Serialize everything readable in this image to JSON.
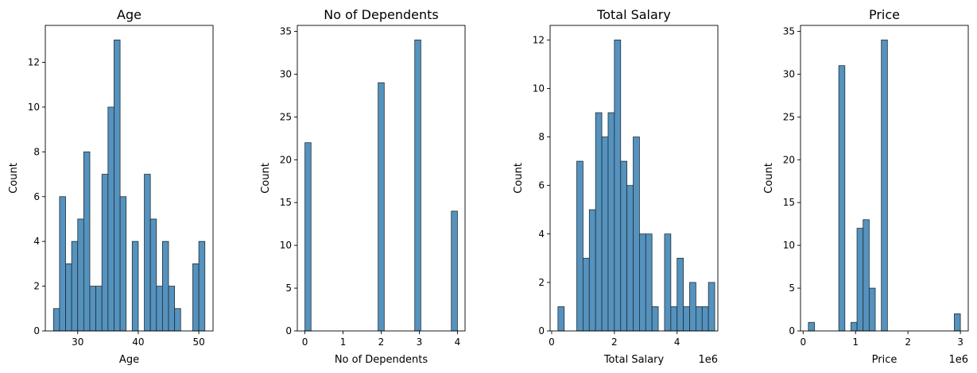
{
  "bar_color": "#5592bd",
  "edge_color": "#1f2f3b",
  "chart_data": [
    {
      "type": "bar",
      "title": "Age",
      "xlabel": "Age",
      "ylabel": "Count",
      "xlim": [
        24.65,
        52.35
      ],
      "ylim": [
        0,
        13.65
      ],
      "x_ticks": [
        30,
        40,
        50
      ],
      "y_ticks": [
        0,
        2,
        4,
        6,
        8,
        10,
        12
      ],
      "bin_edges": [
        26.0,
        27.0,
        28.0,
        29.0,
        30.0,
        31.0,
        32.0,
        33.0,
        34.0,
        35.0,
        36.0,
        37.0,
        38.0,
        39.0,
        40.0,
        41.0,
        42.0,
        43.0,
        44.0,
        45.0,
        46.0,
        47.0,
        48.0,
        49.0,
        50.0,
        51.0
      ],
      "counts": [
        1,
        6,
        3,
        4,
        5,
        8,
        2,
        2,
        7,
        10,
        13,
        6,
        0,
        4,
        0,
        7,
        5,
        2,
        4,
        2,
        1,
        0,
        0,
        3,
        4
      ]
    },
    {
      "type": "bar",
      "title": "No of Dependents",
      "xlabel": "No of Dependents",
      "ylabel": "Count",
      "xlim": [
        -0.2,
        4.2
      ],
      "ylim": [
        0,
        35.7
      ],
      "x_ticks": [
        0,
        1,
        2,
        3,
        4
      ],
      "y_ticks": [
        0,
        5,
        10,
        15,
        20,
        25,
        30,
        35
      ],
      "bin_edges": [
        0.0,
        0.16,
        0.32,
        0.48,
        0.64,
        0.8,
        0.96,
        1.12,
        1.28,
        1.44,
        1.6,
        1.76,
        1.92,
        2.08,
        2.24,
        2.4,
        2.56,
        2.72,
        2.88,
        3.04,
        3.2,
        3.36,
        3.52,
        3.68,
        3.84,
        4.0
      ],
      "counts": [
        22,
        0,
        0,
        0,
        0,
        0,
        0,
        0,
        0,
        0,
        0,
        0,
        29,
        0,
        0,
        0,
        0,
        0,
        34,
        0,
        0,
        0,
        0,
        0,
        14
      ]
    },
    {
      "type": "bar",
      "title": "Total Salary",
      "xlabel": "Total Salary",
      "ylabel": "Count",
      "x_exponent_label": "1e6",
      "xlim": [
        -0.05,
        5.3
      ],
      "ylim": [
        0,
        12.6
      ],
      "x_ticks": [
        0,
        2,
        4
      ],
      "y_ticks": [
        0,
        2,
        4,
        6,
        8,
        10,
        12
      ],
      "bin_edges": [
        0.2,
        0.4,
        0.6,
        0.8,
        1.0,
        1.2,
        1.4,
        1.6,
        1.8,
        2.0,
        2.2,
        2.4,
        2.6,
        2.8,
        3.0,
        3.2,
        3.4,
        3.6,
        3.8,
        4.0,
        4.2,
        4.4,
        4.6,
        4.8,
        5.0,
        5.2
      ],
      "counts": [
        1,
        0,
        0,
        7,
        3,
        5,
        9,
        8,
        9,
        12,
        7,
        6,
        8,
        4,
        4,
        1,
        0,
        4,
        1,
        3,
        1,
        2,
        1,
        1,
        2
      ]
    },
    {
      "type": "bar",
      "title": "Price",
      "xlabel": "Price",
      "ylabel": "Count",
      "x_exponent_label": "1e6",
      "xlim": [
        -0.05,
        3.15
      ],
      "ylim": [
        0,
        35.7
      ],
      "x_ticks": [
        0,
        1,
        2,
        3
      ],
      "y_ticks": [
        0,
        5,
        10,
        15,
        20,
        25,
        30,
        35
      ],
      "bin_edges": [
        0.1,
        0.216,
        0.332,
        0.448,
        0.564,
        0.68,
        0.796,
        0.912,
        1.028,
        1.144,
        1.26,
        1.376,
        1.492,
        1.608,
        1.724,
        1.84,
        1.956,
        2.072,
        2.188,
        2.304,
        2.42,
        2.536,
        2.652,
        2.768,
        2.884,
        3.0
      ],
      "counts": [
        1,
        0,
        0,
        0,
        0,
        31,
        0,
        1,
        12,
        13,
        5,
        0,
        34,
        0,
        0,
        0,
        0,
        0,
        0,
        0,
        0,
        0,
        0,
        0,
        2
      ]
    }
  ]
}
